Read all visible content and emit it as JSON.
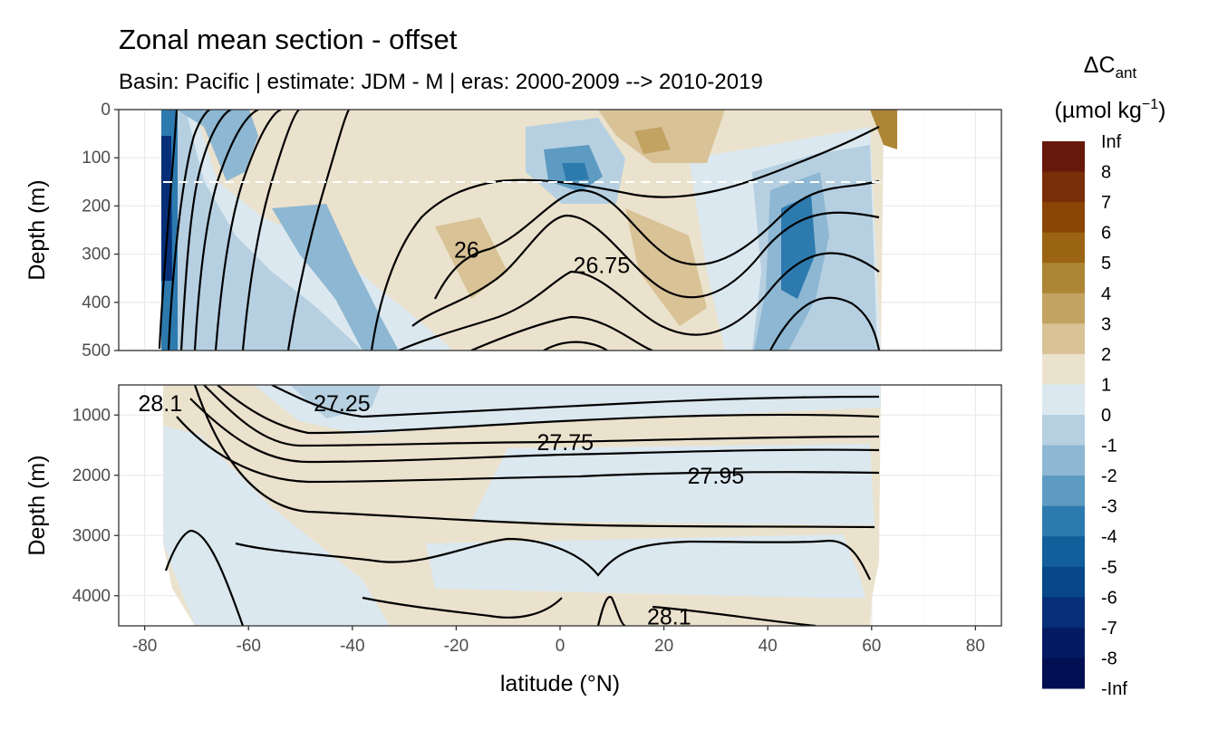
{
  "chart_data": {
    "type": "heatmap",
    "title": "Zonal mean section - offset",
    "subtitle": "Basin: Pacific | estimate: JDM - M | eras: 2000-2009 --> 2010-2019",
    "xlabel": "latitude (°N)",
    "ylabel": "Depth (m)",
    "xlim": [
      -85,
      85
    ],
    "xticks": [
      "-80",
      "-60",
      "-40",
      "-20",
      "0",
      "20",
      "40",
      "60",
      "80"
    ],
    "grid": true,
    "panels": [
      {
        "name": "upper",
        "ylim": [
          0,
          500
        ],
        "yticks": [
          "0",
          "100",
          "200",
          "300",
          "400",
          "500"
        ],
        "dashed_line_depth": 150
      },
      {
        "name": "lower",
        "ylim": [
          500,
          4500
        ],
        "yticks": [
          "1000",
          "2000",
          "3000",
          "4000"
        ]
      }
    ],
    "legend": {
      "title_main": "ΔC",
      "title_sub": "ant",
      "units_main": "(µmol kg",
      "units_sup": "−1",
      "units_end": ")",
      "position": "right",
      "labels": [
        "Inf",
        "8",
        "7",
        "6",
        "5",
        "4",
        "3",
        "2",
        "1",
        "0",
        "-1",
        "-2",
        "-3",
        "-4",
        "-5",
        "-6",
        "-7",
        "-8",
        "-Inf"
      ],
      "colors": [
        "#67180a",
        "#7a2f08",
        "#8a4607",
        "#9a6412",
        "#ad8535",
        "#c2a362",
        "#d8c296",
        "#ebe2cd",
        "#dce8ef",
        "#b6d0e1",
        "#8db7d2",
        "#5e9bc2",
        "#2d7aaf",
        "#125f9b",
        "#08478a",
        "#062f78",
        "#041b63",
        "#020f52"
      ]
    },
    "contour_labels": [
      {
        "text": "26",
        "lat": -18,
        "depth": 290
      },
      {
        "text": "26.75",
        "lat": 8,
        "depth": 322
      },
      {
        "text": "28.1",
        "lat": -77,
        "depth": 800
      },
      {
        "text": "27.25",
        "lat": -42,
        "depth": 800
      },
      {
        "text": "27.75",
        "lat": 1,
        "depth": 1450
      },
      {
        "text": "27.95",
        "lat": 30,
        "depth": 2000
      },
      {
        "text": "28.1",
        "lat": 21,
        "depth": 4340
      }
    ]
  }
}
